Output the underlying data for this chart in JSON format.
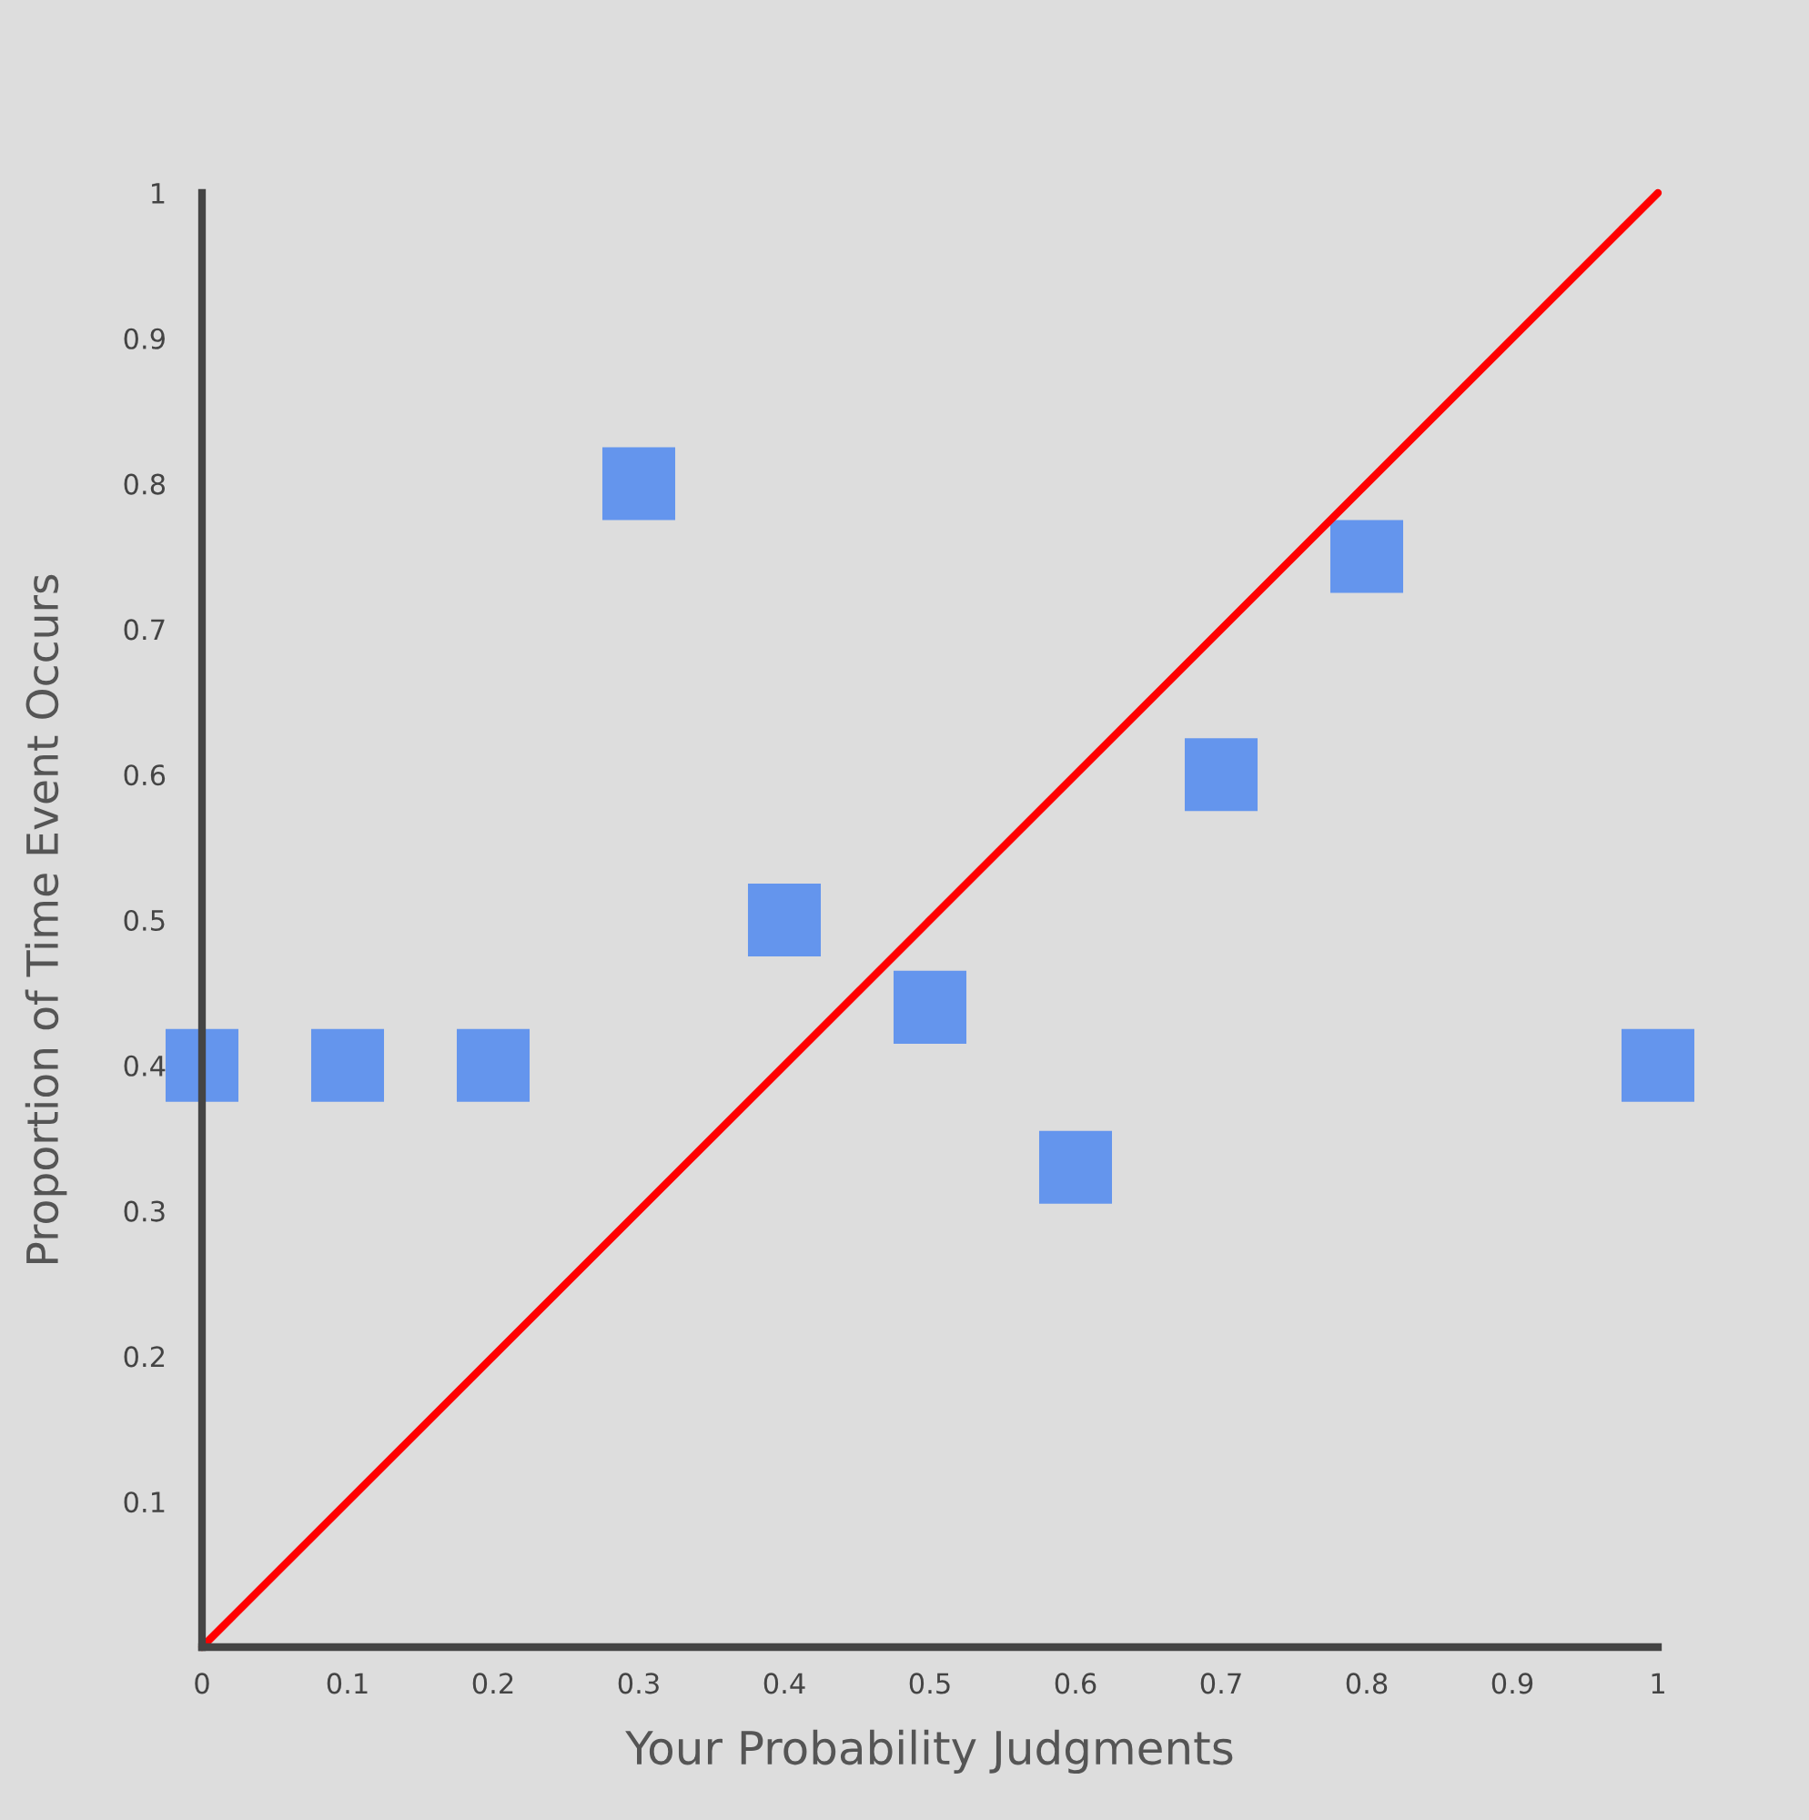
{
  "chart_data": {
    "type": "scatter",
    "xlabel": "Your Probability Judgments",
    "ylabel": "Proportion of Time Event Occurs",
    "series": [
      {
        "color": "#6495ed",
        "marker": "square",
        "x": [
          0,
          0.1,
          0.2,
          0.3,
          0.4,
          0.5,
          0.6,
          0.7,
          0.8,
          1
        ],
        "values": [
          0.4,
          0.4,
          0.4,
          0.8,
          0.5,
          0.44,
          0.33,
          0.6,
          0.75,
          0.4
        ]
      },
      {
        "type": "line",
        "color": "#ff0000",
        "line_style": "solid",
        "x": [
          0,
          1
        ],
        "values": [
          0,
          1
        ]
      }
    ],
    "xlim": [
      0,
      1
    ],
    "ylim": [
      0,
      1
    ],
    "xticks": [
      0,
      0.1,
      0.2,
      0.3,
      0.4,
      0.5,
      0.6,
      0.7,
      0.8,
      0.9,
      1
    ],
    "yticks": [
      0.1,
      0.2,
      0.3,
      0.4,
      0.5,
      0.6,
      0.7,
      0.8,
      0.9,
      1
    ],
    "grid": false,
    "legend": false
  }
}
